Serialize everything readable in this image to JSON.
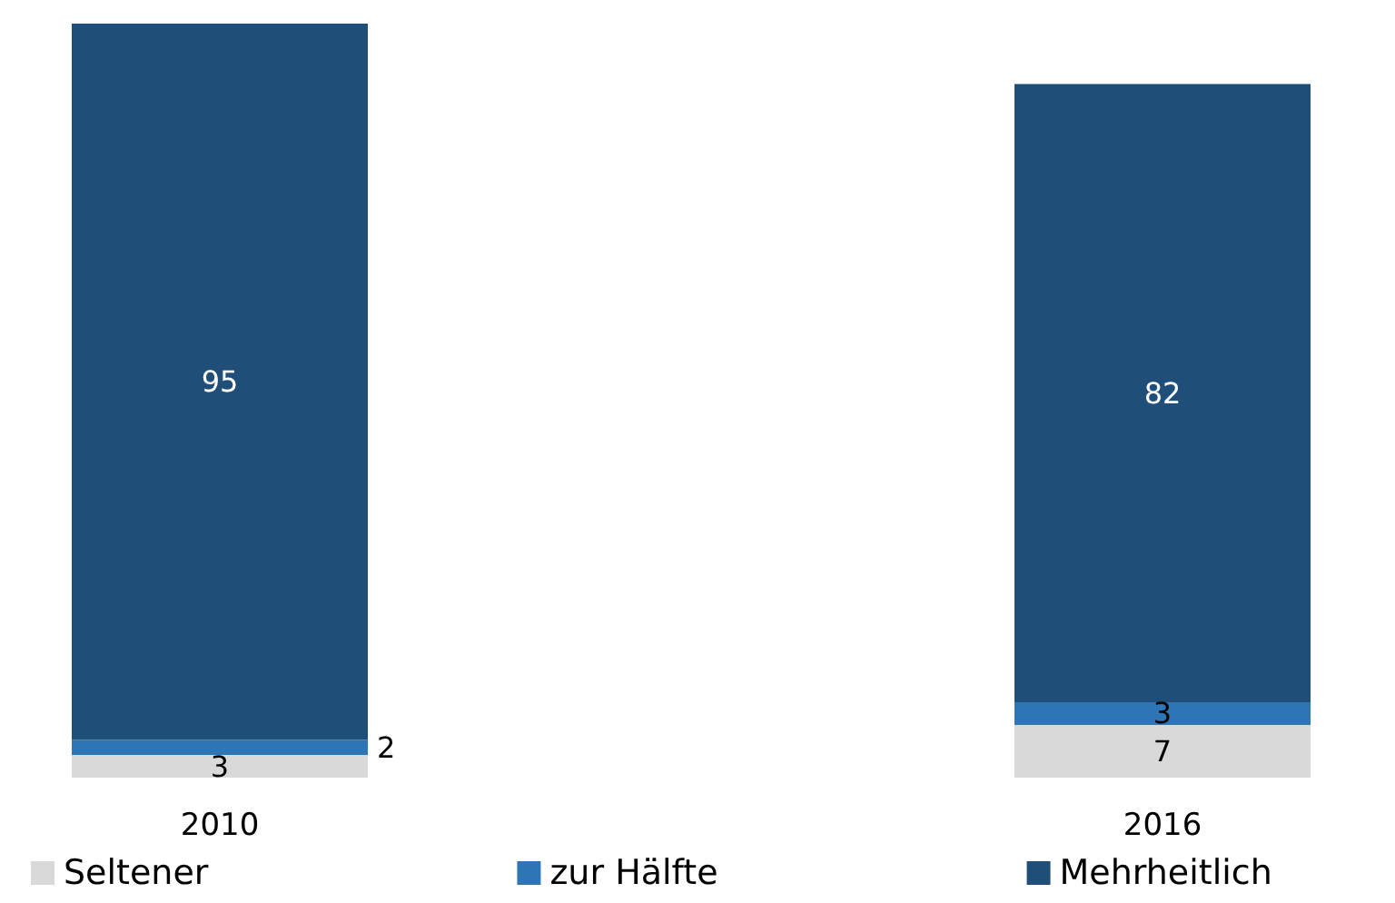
{
  "chart_data": {
    "type": "bar",
    "stacked": true,
    "categories": [
      "2010",
      "2016"
    ],
    "series": [
      {
        "name": "Seltener",
        "color": "#d9d9d9",
        "values": [
          3,
          7
        ]
      },
      {
        "name": "zur Hälfte",
        "color": "#2e75b6",
        "values": [
          2,
          3
        ]
      },
      {
        "name": "Mehrheitlich",
        "color": "#1f4e79",
        "values": [
          95,
          82
        ]
      }
    ],
    "data_labels": true,
    "legend": "bottom"
  }
}
